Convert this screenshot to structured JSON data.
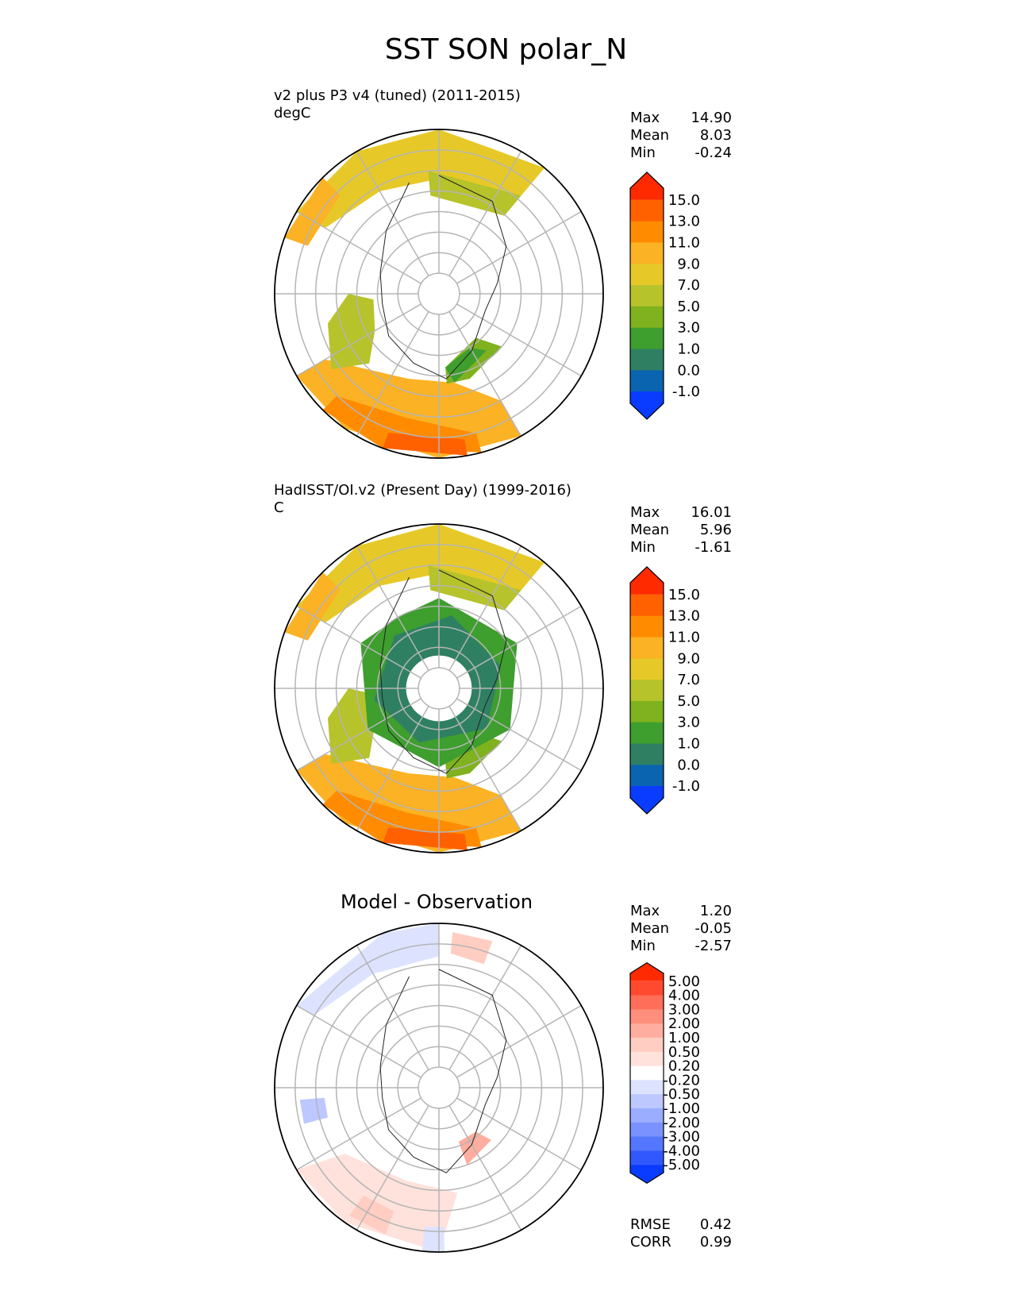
{
  "figure": {
    "title": "SST SON polar_N"
  },
  "chart_data": [
    {
      "type": "heatmap",
      "projection": "north-polar-stereographic",
      "title": "v2 plus P3 v4 (tuned) (2011-2015)",
      "units": "degC",
      "stats": {
        "max_label": "Max",
        "max": "14.90",
        "mean_label": "Mean",
        "mean": "8.03",
        "min_label": "Min",
        "min": "-0.24"
      },
      "colorbar": {
        "labels": [
          "15.0",
          "13.0",
          "11.0",
          "9.0",
          "7.0",
          "5.0",
          "3.0",
          "1.0",
          "0.0",
          "-1.0"
        ],
        "colors": [
          "#ff2a00",
          "#ff6100",
          "#ff8c00",
          "#fbb224",
          "#e6c928",
          "#b6c32a",
          "#7fb21e",
          "#3e9e2e",
          "#2f8063",
          "#0a64b0",
          "#0a3cff"
        ],
        "extend": "both"
      }
    },
    {
      "type": "heatmap",
      "projection": "north-polar-stereographic",
      "title": "HadISST/OI.v2 (Present Day) (1999-2016)",
      "units": "C",
      "stats": {
        "max_label": "Max",
        "max": "16.01",
        "mean_label": "Mean",
        "mean": "5.96",
        "min_label": "Min",
        "min": "-1.61"
      },
      "colorbar": {
        "labels": [
          "15.0",
          "13.0",
          "11.0",
          "9.0",
          "7.0",
          "5.0",
          "3.0",
          "1.0",
          "0.0",
          "-1.0"
        ],
        "colors": [
          "#ff2a00",
          "#ff6100",
          "#ff8c00",
          "#fbb224",
          "#e6c928",
          "#b6c32a",
          "#7fb21e",
          "#3e9e2e",
          "#2f8063",
          "#0a64b0",
          "#0a3cff"
        ],
        "extend": "both"
      }
    },
    {
      "type": "heatmap",
      "projection": "north-polar-stereographic",
      "title": "Model - Observation",
      "stats": {
        "max_label": "Max",
        "max": "1.20",
        "mean_label": "Mean",
        "mean": "-0.05",
        "min_label": "Min",
        "min": "-2.57"
      },
      "metrics": {
        "rmse_label": "RMSE",
        "rmse": "0.42",
        "corr_label": "CORR",
        "corr": "0.99"
      },
      "colorbar": {
        "labels": [
          "5.00",
          "4.00",
          "3.00",
          "2.00",
          "1.00",
          "0.50",
          "0.20",
          "-0.20",
          "-0.50",
          "-1.00",
          "-2.00",
          "-3.00",
          "-4.00",
          "-5.00"
        ],
        "colors": [
          "#ff2a00",
          "#ff4a30",
          "#ff6e58",
          "#ff8e7c",
          "#ffad9e",
          "#ffcdc2",
          "#ffe2dc",
          "#ffffff",
          "#dde3ff",
          "#bcc8ff",
          "#9aadff",
          "#7a92ff",
          "#5577ff",
          "#3158ff",
          "#0a3cff"
        ],
        "extend": "both"
      }
    }
  ]
}
